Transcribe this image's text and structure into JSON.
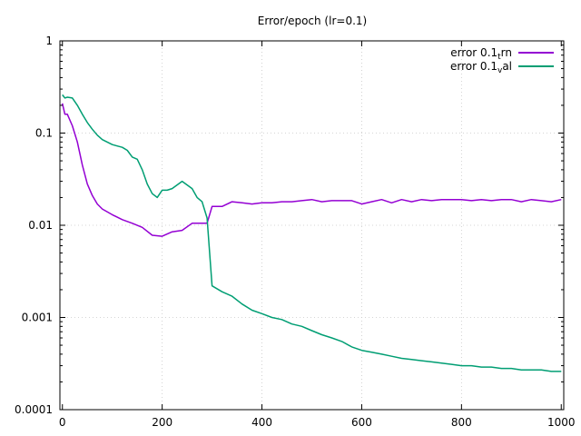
{
  "chart_data": {
    "type": "line",
    "title": "Error/epoch (lr=0.1)",
    "xlabel": "",
    "ylabel": "",
    "xlim": [
      -5,
      1005
    ],
    "ylim": [
      0.0001,
      1
    ],
    "yscale": "log",
    "grid": true,
    "legend_position": "top-right",
    "x_ticks": [
      0,
      200,
      400,
      600,
      800,
      1000
    ],
    "x_tick_labels": [
      "0",
      "200",
      "400",
      "600",
      "800",
      "1000"
    ],
    "y_ticks": [
      0.0001,
      0.001,
      0.01,
      0.1,
      1
    ],
    "y_tick_labels": [
      "0.0001",
      "0.001",
      "0.01",
      "0.1",
      "1"
    ],
    "series": [
      {
        "name": "error 0.1",
        "name_subscript": "t",
        "name_suffix": "rn",
        "color": "#9400d3",
        "x": [
          0,
          5,
          10,
          20,
          30,
          40,
          50,
          60,
          70,
          80,
          100,
          120,
          140,
          160,
          180,
          200,
          220,
          240,
          260,
          280,
          290,
          300,
          320,
          340,
          360,
          380,
          400,
          420,
          440,
          460,
          480,
          500,
          520,
          540,
          560,
          580,
          600,
          620,
          640,
          660,
          680,
          700,
          720,
          740,
          760,
          780,
          800,
          820,
          840,
          860,
          880,
          900,
          920,
          940,
          960,
          980,
          1000
        ],
        "y": [
          0.21,
          0.16,
          0.16,
          0.12,
          0.08,
          0.045,
          0.028,
          0.021,
          0.017,
          0.015,
          0.013,
          0.0115,
          0.0105,
          0.0095,
          0.0078,
          0.0076,
          0.0085,
          0.0088,
          0.0105,
          0.0105,
          0.0105,
          0.016,
          0.016,
          0.018,
          0.0175,
          0.017,
          0.0175,
          0.0175,
          0.018,
          0.018,
          0.0185,
          0.019,
          0.018,
          0.0185,
          0.0185,
          0.0185,
          0.017,
          0.018,
          0.019,
          0.0175,
          0.019,
          0.018,
          0.019,
          0.0185,
          0.019,
          0.019,
          0.019,
          0.0185,
          0.019,
          0.0185,
          0.019,
          0.019,
          0.018,
          0.019,
          0.0185,
          0.018,
          0.019
        ]
      },
      {
        "name": "error 0.1",
        "name_subscript": "v",
        "name_suffix": "al",
        "color": "#009e73",
        "x": [
          0,
          5,
          10,
          20,
          30,
          40,
          50,
          60,
          70,
          80,
          100,
          120,
          130,
          140,
          150,
          160,
          170,
          180,
          190,
          200,
          210,
          220,
          240,
          260,
          270,
          280,
          290,
          300,
          320,
          340,
          360,
          380,
          400,
          420,
          440,
          460,
          480,
          500,
          520,
          540,
          560,
          580,
          600,
          620,
          640,
          660,
          680,
          700,
          720,
          740,
          760,
          780,
          800,
          820,
          840,
          860,
          880,
          900,
          920,
          940,
          960,
          980,
          1000
        ],
        "y": [
          0.26,
          0.24,
          0.245,
          0.24,
          0.2,
          0.16,
          0.13,
          0.11,
          0.095,
          0.085,
          0.075,
          0.07,
          0.065,
          0.055,
          0.052,
          0.04,
          0.028,
          0.022,
          0.02,
          0.024,
          0.024,
          0.025,
          0.03,
          0.025,
          0.02,
          0.018,
          0.012,
          0.0022,
          0.0019,
          0.0017,
          0.0014,
          0.0012,
          0.0011,
          0.001,
          0.00095,
          0.00085,
          0.0008,
          0.00072,
          0.00065,
          0.0006,
          0.00055,
          0.00048,
          0.00044,
          0.00042,
          0.0004,
          0.00038,
          0.00036,
          0.00035,
          0.00034,
          0.00033,
          0.00032,
          0.00031,
          0.0003,
          0.0003,
          0.00029,
          0.00029,
          0.00028,
          0.00028,
          0.00027,
          0.00027,
          0.00027,
          0.00026,
          0.00026
        ]
      }
    ]
  }
}
